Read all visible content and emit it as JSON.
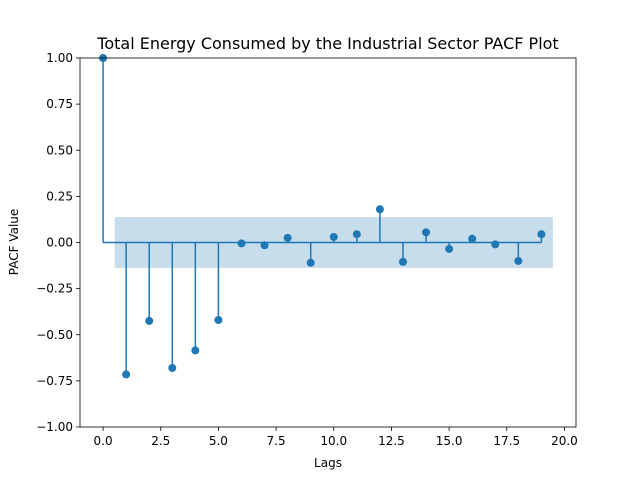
{
  "chart_data": {
    "type": "scatter",
    "subtype": "stem",
    "title": "Total Energy Consumed by the Industrial Sector PACF Plot",
    "xlabel": "Lags",
    "ylabel": "PACF Value",
    "xlim": [
      -1,
      20.5
    ],
    "ylim": [
      -1.0,
      1.0
    ],
    "x_ticks": [
      0,
      2.5,
      5,
      7.5,
      10,
      12.5,
      15,
      17.5,
      20
    ],
    "x_tick_labels": [
      "0.0",
      "2.5",
      "5.0",
      "7.5",
      "10.0",
      "12.5",
      "15.0",
      "17.5",
      "20.0"
    ],
    "y_ticks": [
      -1,
      -0.75,
      -0.5,
      -0.25,
      0,
      0.25,
      0.5,
      0.75,
      1
    ],
    "y_tick_labels": [
      "−1.00",
      "−0.75",
      "−0.50",
      "−0.25",
      "0.00",
      "0.25",
      "0.50",
      "0.75",
      "1.00"
    ],
    "grid": false,
    "baseline": 0,
    "confidence_band": {
      "x_range": [
        0.5,
        19.5
      ],
      "lower": -0.138,
      "upper": 0.138
    },
    "series": [
      {
        "x": [
          0,
          1,
          2,
          3,
          4,
          5,
          6,
          7,
          8,
          9,
          10,
          11,
          12,
          13,
          14,
          15,
          16,
          17,
          18,
          19
        ],
        "values": [
          1.0,
          -0.715,
          -0.425,
          -0.68,
          -0.585,
          -0.42,
          -0.005,
          -0.015,
          0.025,
          -0.11,
          0.03,
          0.045,
          0.18,
          -0.105,
          0.055,
          -0.035,
          0.02,
          -0.01,
          -0.1,
          0.045
        ]
      }
    ],
    "colors": {
      "stem": "#1f77b4",
      "band": "#1f77b4",
      "band_opacity": 0.25,
      "axes": "#000000"
    }
  }
}
